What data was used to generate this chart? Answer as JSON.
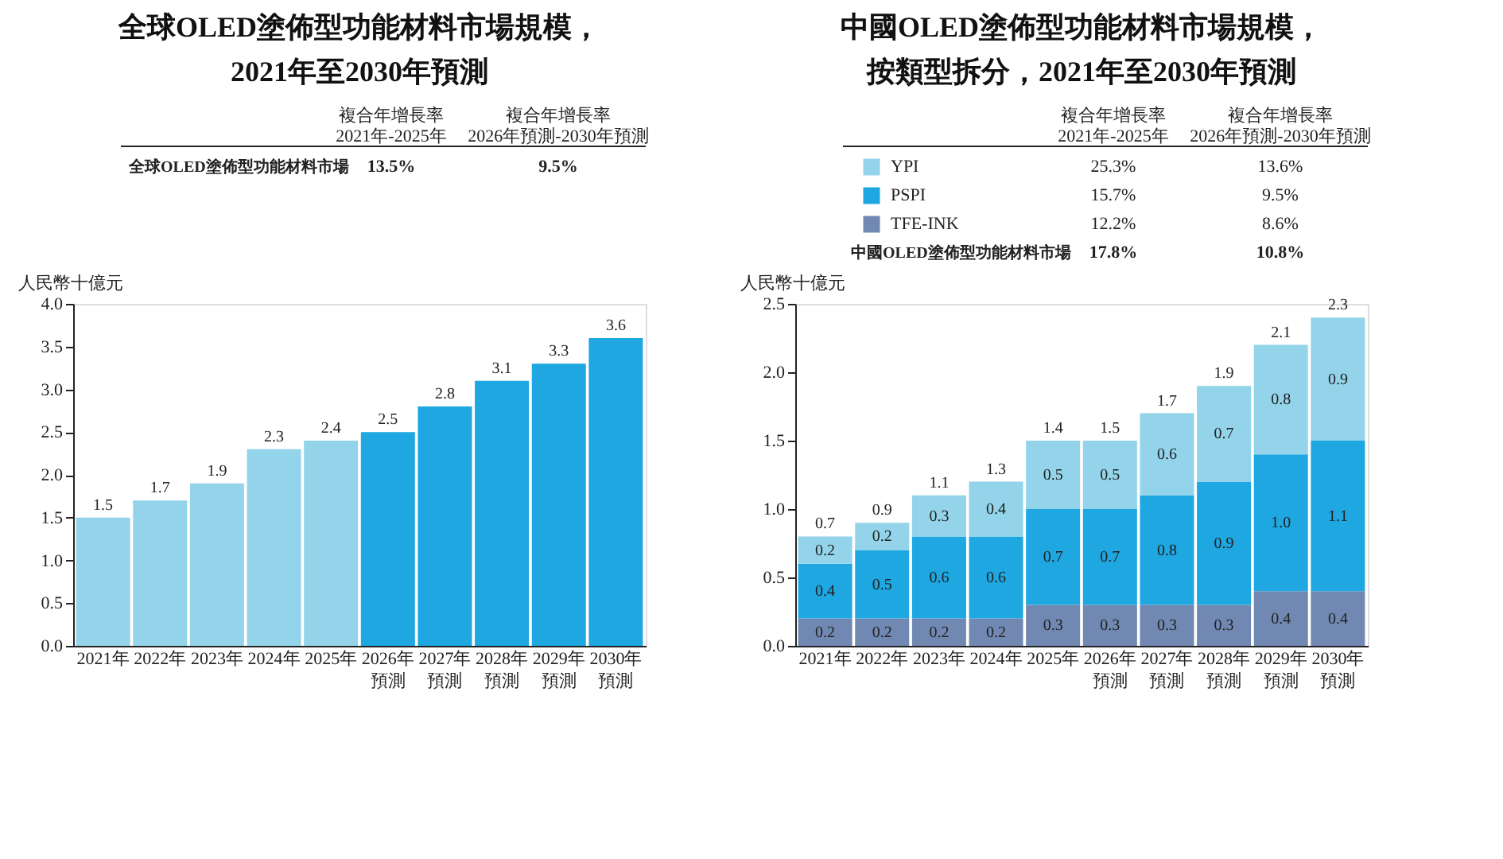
{
  "chart_data": [
    {
      "type": "bar",
      "title": "全球OLED塗佈型功能材料市場規模，2021年至2030年預測",
      "ylabel": "人民幣十億元",
      "categories": [
        "2021年",
        "2022年",
        "2023年",
        "2024年",
        "2025年",
        "2026年預測",
        "2027年預測",
        "2028年預測",
        "2029年預測",
        "2030年預測"
      ],
      "values": [
        1.5,
        1.7,
        1.9,
        2.3,
        2.4,
        2.5,
        2.8,
        3.1,
        3.3,
        3.6
      ],
      "colors": [
        "#93d4ea",
        "#93d4ea",
        "#93d4ea",
        "#93d4ea",
        "#93d4ea",
        "#1ea7e1",
        "#1ea7e1",
        "#1ea7e1",
        "#1ea7e1",
        "#1ea7e1"
      ],
      "ylim": [
        0,
        4
      ],
      "yticks": [
        {
          "value": 0,
          "label": "0.0"
        },
        {
          "value": 0.5,
          "label": "0.5"
        },
        {
          "value": 1,
          "label": "1.0"
        },
        {
          "value": 1.5,
          "label": "1.5"
        },
        {
          "value": 2,
          "label": "2.0"
        },
        {
          "value": 2.5,
          "label": "2.5"
        },
        {
          "value": 3,
          "label": "3.0"
        },
        {
          "value": 3.5,
          "label": "3.5"
        },
        {
          "value": 4,
          "label": "4.0"
        }
      ],
      "data_labels": true,
      "annotations": [
        "複合年增長率\n2021年-2025年",
        "複合年增長率\n2026年預測-2030年預測",
        "全球OLED塗佈型功能材料市場",
        "13.5%",
        "9.5%"
      ]
    },
    {
      "type": "bar",
      "stacked": true,
      "title": "中國OLED塗佈型功能材料市場規模，按類型拆分，2021年至2030年預測",
      "ylabel": "人民幣十億元",
      "categories": [
        "2021年",
        "2022年",
        "2023年",
        "2024年",
        "2025年",
        "2026年預測",
        "2027年預測",
        "2028年預測",
        "2029年預測",
        "2030年預測"
      ],
      "series": [
        {
          "name": "TFE-INK",
          "color": "#7189b2",
          "values": [
            0.2,
            0.2,
            0.2,
            0.2,
            0.3,
            0.3,
            0.3,
            0.3,
            0.4,
            0.4
          ]
        },
        {
          "name": "PSPI",
          "color": "#1ea7e1",
          "values": [
            0.4,
            0.5,
            0.6,
            0.6,
            0.7,
            0.7,
            0.8,
            0.9,
            1.0,
            1.1
          ],
          "value_labels": [
            "0.4",
            "0.5",
            "0.6",
            "0.6",
            "0.7",
            "0.7",
            "0.8",
            "0.9",
            "1.0",
            "1.1"
          ]
        },
        {
          "name": "YPI",
          "color": "#93d4ea",
          "values": [
            0.2,
            0.2,
            0.3,
            0.4,
            0.5,
            0.5,
            0.6,
            0.7,
            0.8,
            0.9
          ]
        }
      ],
      "totals": [
        "0.7",
        "0.9",
        "1.1",
        "1.3",
        "1.4",
        "1.5",
        "1.7",
        "1.9",
        "2.1",
        "2.3"
      ],
      "ylim": [
        0,
        2.5
      ],
      "yticks": [
        {
          "value": 0,
          "label": "0.0"
        },
        {
          "value": 0.5,
          "label": "0.5"
        },
        {
          "value": 1,
          "label": "1.0"
        },
        {
          "value": 1.5,
          "label": "1.5"
        },
        {
          "value": 2,
          "label": "2.0"
        },
        {
          "value": 2.5,
          "label": "2.5"
        }
      ],
      "data_labels": true,
      "legend": "top left",
      "annotations": [
        "複合年增長率\n2021年-2025年",
        "複合年增長率\n2026年預測-2030年預測",
        "25.3%",
        "13.6%",
        "15.7%",
        "9.5%",
        "12.2%",
        "8.6%",
        "中國OLED塗佈型功能材料市場",
        "17.8%",
        "10.8%"
      ]
    }
  ]
}
